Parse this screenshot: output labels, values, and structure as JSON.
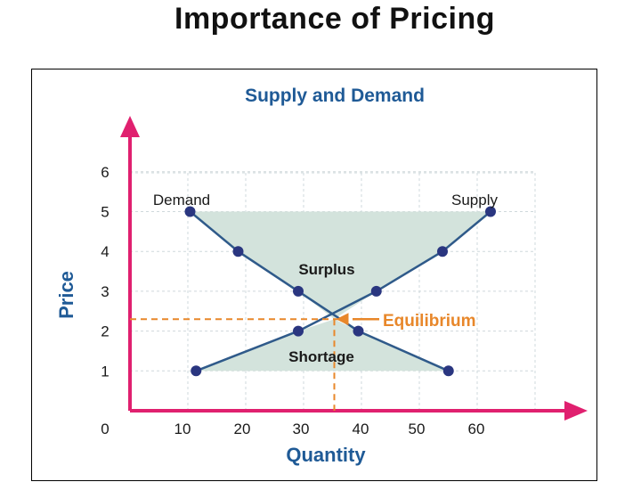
{
  "slide": {
    "title": "Importance of Pricing"
  },
  "colors": {
    "accent_pink": "#e0206f",
    "title_blue": "#1f5a96",
    "series_line": "#2f5a8a",
    "marker": "#2a3680",
    "region_fill": "#d3e3dc",
    "grid": "#cfd8dc",
    "equilibrium": "#e8872a"
  },
  "chart_data": {
    "type": "line",
    "title": "Supply and Demand",
    "xlabel": "Quantity",
    "ylabel": "Price",
    "xlim": [
      0,
      70
    ],
    "ylim": [
      0,
      6.5
    ],
    "xticks": [
      "0",
      "10",
      "20",
      "30",
      "40",
      "50",
      "60"
    ],
    "yticks": [
      "1",
      "2",
      "3",
      "4",
      "5",
      "6"
    ],
    "grid": true,
    "series": [
      {
        "name": "Demand",
        "points": [
          [
            10,
            5
          ],
          [
            18,
            4
          ],
          [
            28,
            3
          ],
          [
            38,
            2
          ],
          [
            53,
            1
          ]
        ]
      },
      {
        "name": "Supply",
        "points": [
          [
            11,
            1
          ],
          [
            28,
            2
          ],
          [
            41,
            3
          ],
          [
            52,
            4
          ],
          [
            60,
            5
          ]
        ]
      }
    ],
    "regions": [
      {
        "label": "Surplus",
        "price_above": 2.3
      },
      {
        "label": "Shortage",
        "price_below": 2.3
      }
    ],
    "equilibrium": {
      "label": "Equilibrium",
      "x": 34,
      "y": 2.3
    }
  }
}
